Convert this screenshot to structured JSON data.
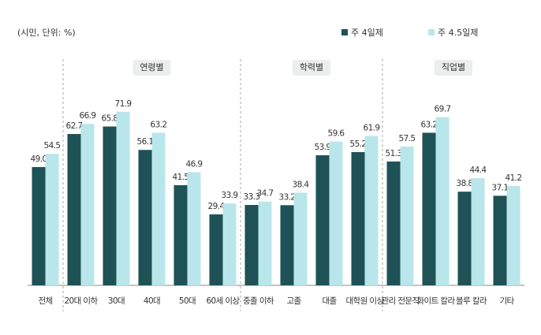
{
  "chart_data": {
    "type": "bar",
    "note": "(시민, 단위: %)",
    "group_labels": [
      "연령별",
      "학력별",
      "직업별"
    ],
    "categories": [
      "전체",
      "20대 이하",
      "30대",
      "40대",
      "50대",
      "60세 이상",
      "중졸 이하",
      "고졸",
      "대졸",
      "대학원 이상",
      "관리 전문직",
      "화이트 칼라",
      "블루 칼라",
      "기타"
    ],
    "series": [
      {
        "name": "주 4일제",
        "color": "#1e5256",
        "values": [
          49.0,
          62.7,
          65.8,
          56.1,
          41.5,
          29.4,
          33.3,
          33.2,
          53.9,
          55.2,
          51.3,
          63.2,
          38.8,
          37.1
        ],
        "value_labels": [
          "49.0",
          "62.7",
          "65.8",
          "56.1",
          "41.5",
          "29.4",
          "33.3",
          "33.2",
          "53.9",
          "55.2",
          "51.3",
          "63.2",
          "38.8",
          "37.1"
        ]
      },
      {
        "name": "주 4.5일제",
        "color": "#b9e6ea",
        "values": [
          54.5,
          66.9,
          71.9,
          63.2,
          46.9,
          33.9,
          34.7,
          38.4,
          59.6,
          61.9,
          57.5,
          69.7,
          44.4,
          41.2
        ],
        "value_labels": [
          "54.5",
          "66.9",
          "71.9",
          "63.2",
          "46.9",
          "33.9",
          "34.7",
          "38.4",
          "59.6",
          "61.9",
          "57.5",
          "69.7",
          "44.4",
          "41.2"
        ]
      }
    ],
    "ylim": [
      0,
      80
    ]
  }
}
